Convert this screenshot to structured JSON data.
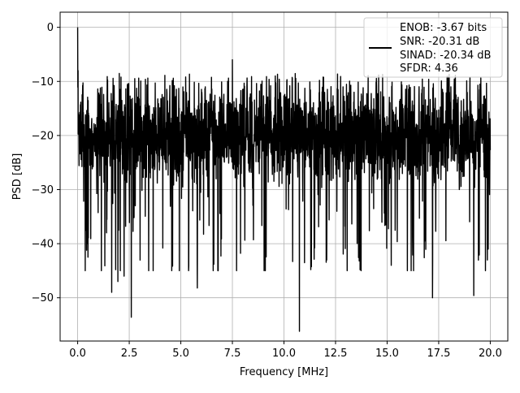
{
  "chart_data": {
    "type": "line",
    "title": "",
    "xlabel": "Frequency [MHz]",
    "ylabel": "PSD [dB]",
    "xlim": [
      -0.85,
      20.85
    ],
    "ylim": [
      -58.0,
      2.8
    ],
    "grid": true,
    "legend_position": "top-right",
    "xticks": [
      0.0,
      2.5,
      5.0,
      7.5,
      10.0,
      12.5,
      15.0,
      17.5,
      20.0
    ],
    "xtick_labels": [
      "0.0",
      "2.5",
      "5.0",
      "7.5",
      "10.0",
      "12.5",
      "15.0",
      "17.5",
      "20.0"
    ],
    "yticks": [
      0,
      -10,
      -20,
      -30,
      -40,
      -50
    ],
    "ytick_labels": [
      "0",
      "−10",
      "−20",
      "−30",
      "−40",
      "−50"
    ],
    "legend": {
      "lines": [
        "ENOB: -3.67 bits",
        "SNR: -20.31 dB",
        "SINAD: -20.34 dB",
        "SFDR: 4.36"
      ],
      "color": "#000000"
    },
    "series": [
      {
        "color": "#000000",
        "noise": {
          "n_points": 2400,
          "x_start": 0.0,
          "x_end": 20.0,
          "center_db": -20.0,
          "min_db": -45.0,
          "max_db": -8.5,
          "seed": 7
        },
        "features": [
          {
            "x": 0.0,
            "y": 0.0
          },
          {
            "x": 0.02,
            "y": -8.0
          },
          {
            "x": 0.45,
            "y": -40.0
          },
          {
            "x": 0.5,
            "y": -42.5
          },
          {
            "x": 1.15,
            "y": -45.0
          },
          {
            "x": 1.65,
            "y": -49.0
          },
          {
            "x": 1.95,
            "y": -47.0
          },
          {
            "x": 2.25,
            "y": -46.0
          },
          {
            "x": 2.6,
            "y": -53.6
          },
          {
            "x": 5.8,
            "y": -48.2
          },
          {
            "x": 6.6,
            "y": -43.8
          },
          {
            "x": 7.5,
            "y": -6.0
          },
          {
            "x": 10.75,
            "y": -56.2
          },
          {
            "x": 11.3,
            "y": -44.8
          },
          {
            "x": 15.2,
            "y": -44.0
          },
          {
            "x": 16.8,
            "y": -42.6
          },
          {
            "x": 17.2,
            "y": -50.0
          },
          {
            "x": 19.2,
            "y": -49.6
          },
          {
            "x": 19.9,
            "y": -41.0
          }
        ]
      }
    ]
  }
}
